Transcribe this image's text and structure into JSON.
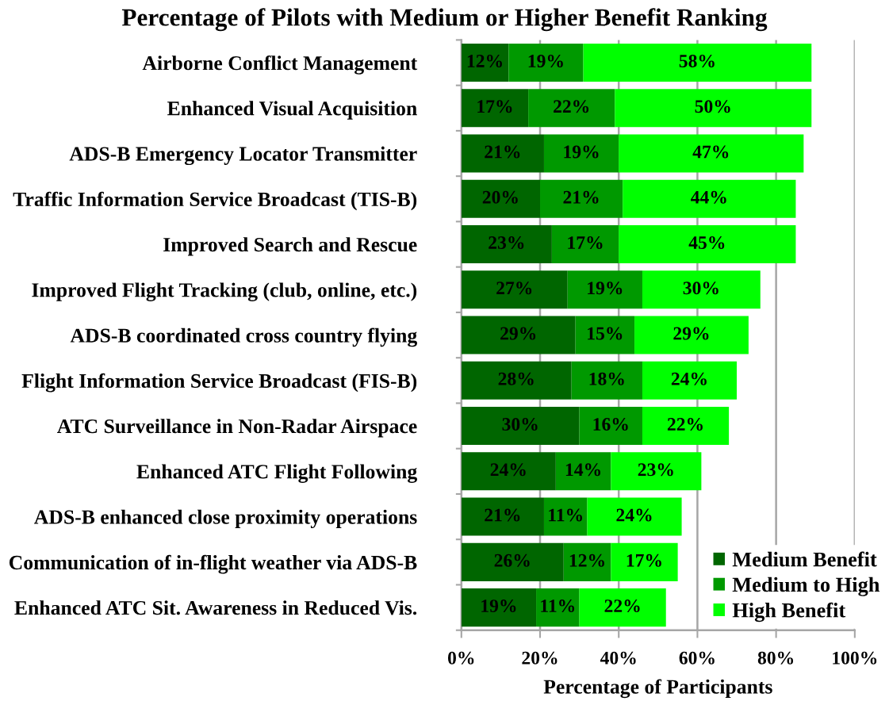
{
  "chart_data": {
    "type": "bar",
    "orientation": "horizontal",
    "stacked": true,
    "title": "Percentage of Pilots with Medium or Higher Benefit Ranking",
    "xlabel": "Percentage of Participants",
    "categories": [
      "Airborne Conflict Management",
      "Enhanced Visual Acquisition",
      "ADS-B Emergency Locator Transmitter",
      "Traffic Information Service Broadcast (TIS-B)",
      "Improved Search and Rescue",
      "Improved Flight Tracking (club, online, etc.)",
      "ADS-B coordinated cross country flying",
      "Flight Information Service Broadcast (FIS-B)",
      "ATC Surveillance in Non-Radar Airspace",
      "Enhanced ATC Flight Following",
      "ADS-B enhanced close proximity operations",
      "Communication of in-flight weather via ADS-B",
      "Enhanced ATC Sit. Awareness in Reduced Vis."
    ],
    "series": [
      {
        "name": "Medium Benefit",
        "color": "#006600",
        "values": [
          12,
          17,
          21,
          20,
          23,
          27,
          29,
          28,
          30,
          24,
          21,
          26,
          19
        ],
        "value_labels": [
          "12%",
          "17%",
          "21%",
          "20%",
          "23%",
          "27%",
          "29%",
          "28%",
          "30%",
          "24%",
          "21%",
          "26%",
          "19%"
        ]
      },
      {
        "name": "Medium to High",
        "color": "#009900",
        "values": [
          19,
          22,
          19,
          21,
          17,
          19,
          15,
          18,
          16,
          14,
          11,
          12,
          11
        ],
        "value_labels": [
          "19%",
          "22%",
          "19%",
          "21%",
          "17%",
          "19%",
          "15%",
          "18%",
          "16%",
          "14%",
          "11%",
          "12%",
          "11%"
        ]
      },
      {
        "name": "High Benefit",
        "color": "#00ff00",
        "values": [
          58,
          50,
          47,
          44,
          45,
          30,
          29,
          24,
          22,
          23,
          24,
          17,
          22
        ],
        "value_labels": [
          "58%",
          "50%",
          "47%",
          "44%",
          "45%",
          "30%",
          "29%",
          "24%",
          "22%",
          "23%",
          "24%",
          "17%",
          "22%"
        ]
      }
    ],
    "xlim": [
      0,
      100
    ],
    "xticks": [
      {
        "value": 0,
        "label": "0%"
      },
      {
        "value": 20,
        "label": "20%"
      },
      {
        "value": 40,
        "label": "40%"
      },
      {
        "value": 60,
        "label": "60%"
      },
      {
        "value": 80,
        "label": "80%"
      },
      {
        "value": 100,
        "label": "100%"
      }
    ],
    "grid": "x",
    "legend": "bottom right"
  }
}
